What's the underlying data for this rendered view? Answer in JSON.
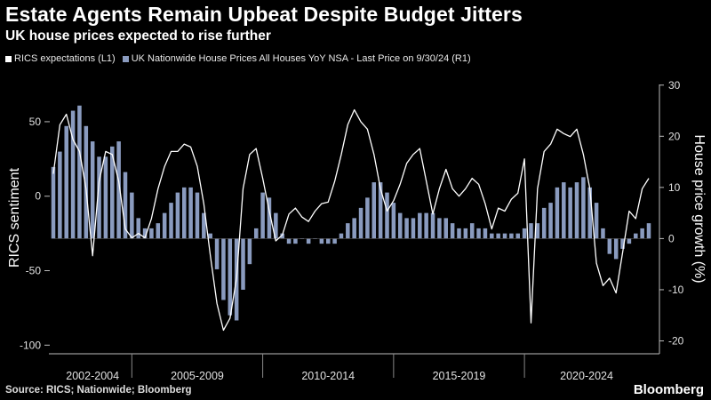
{
  "title": "Estate Agents Remain Upbeat Despite Budget Jitters",
  "subtitle": "UK house prices expected to rise further",
  "source": "Source: RICS; Nationwide; Bloomberg",
  "brand": "Bloomberg",
  "colors": {
    "background": "#000000",
    "line": "#ffffff",
    "bars": "#8a9bbf"
  },
  "chart_data": {
    "type": "bar+line",
    "legend": [
      {
        "label": "RICS expectations (L1)",
        "color": "#ffffff"
      },
      {
        "label": "UK Nationwide House Prices All Houses YoY NSA - Last Price on 9/30/24 (R1)",
        "color": "#8a9bbf"
      }
    ],
    "y_left": {
      "label": "RICS sentiment",
      "ticks": [
        "50",
        "0",
        "-50",
        "-100"
      ],
      "range": [
        -104,
        78
      ]
    },
    "y_right": {
      "label": "House price growth (%)",
      "ticks": [
        "30",
        "20",
        "10",
        "0",
        "-10",
        "-20"
      ],
      "range": [
        -22,
        31
      ]
    },
    "x_periods": [
      "2002-2004",
      "2005-2009",
      "2010-2014",
      "2015-2019",
      "2020-2024"
    ],
    "x_range": [
      2002.0,
      2024.75
    ],
    "series": [
      {
        "name": "RICS expectations (L1)",
        "axis": "left",
        "type": "line",
        "points": [
          [
            2002.0,
            15
          ],
          [
            2002.25,
            48
          ],
          [
            2002.5,
            55
          ],
          [
            2002.75,
            38
          ],
          [
            2003.0,
            30
          ],
          [
            2003.25,
            5
          ],
          [
            2003.5,
            -40
          ],
          [
            2003.75,
            10
          ],
          [
            2004.0,
            30
          ],
          [
            2004.25,
            28
          ],
          [
            2004.5,
            10
          ],
          [
            2004.75,
            -22
          ],
          [
            2005.0,
            -28
          ],
          [
            2005.25,
            -25
          ],
          [
            2005.5,
            -28
          ],
          [
            2005.75,
            -15
          ],
          [
            2006.0,
            5
          ],
          [
            2006.25,
            20
          ],
          [
            2006.5,
            30
          ],
          [
            2006.75,
            30
          ],
          [
            2007.0,
            35
          ],
          [
            2007.25,
            33
          ],
          [
            2007.5,
            20
          ],
          [
            2007.75,
            -5
          ],
          [
            2008.0,
            -40
          ],
          [
            2008.25,
            -72
          ],
          [
            2008.5,
            -90
          ],
          [
            2008.75,
            -82
          ],
          [
            2009.0,
            -55
          ],
          [
            2009.25,
            5
          ],
          [
            2009.5,
            28
          ],
          [
            2009.75,
            32
          ],
          [
            2010.0,
            12
          ],
          [
            2010.25,
            -10
          ],
          [
            2010.5,
            -30
          ],
          [
            2010.75,
            -26
          ],
          [
            2011.0,
            -12
          ],
          [
            2011.25,
            -8
          ],
          [
            2011.5,
            -14
          ],
          [
            2011.75,
            -17
          ],
          [
            2012.0,
            -10
          ],
          [
            2012.25,
            -5
          ],
          [
            2012.5,
            -4
          ],
          [
            2012.75,
            10
          ],
          [
            2013.0,
            28
          ],
          [
            2013.25,
            48
          ],
          [
            2013.5,
            58
          ],
          [
            2013.75,
            50
          ],
          [
            2014.0,
            45
          ],
          [
            2014.25,
            28
          ],
          [
            2014.5,
            5
          ],
          [
            2014.75,
            -10
          ],
          [
            2015.0,
            -3
          ],
          [
            2015.25,
            8
          ],
          [
            2015.5,
            22
          ],
          [
            2015.75,
            28
          ],
          [
            2016.0,
            32
          ],
          [
            2016.25,
            10
          ],
          [
            2016.5,
            -12
          ],
          [
            2016.75,
            5
          ],
          [
            2017.0,
            18
          ],
          [
            2017.25,
            5
          ],
          [
            2017.5,
            0
          ],
          [
            2017.75,
            5
          ],
          [
            2018.0,
            12
          ],
          [
            2018.25,
            8
          ],
          [
            2018.5,
            -5
          ],
          [
            2018.75,
            -22
          ],
          [
            2019.0,
            -8
          ],
          [
            2019.25,
            -10
          ],
          [
            2019.5,
            -2
          ],
          [
            2019.75,
            2
          ],
          [
            2020.0,
            25
          ],
          [
            2020.25,
            -85
          ],
          [
            2020.5,
            5
          ],
          [
            2020.75,
            30
          ],
          [
            2021.0,
            35
          ],
          [
            2021.25,
            45
          ],
          [
            2021.5,
            42
          ],
          [
            2021.75,
            40
          ],
          [
            2022.0,
            45
          ],
          [
            2022.25,
            28
          ],
          [
            2022.5,
            5
          ],
          [
            2022.75,
            -45
          ],
          [
            2023.0,
            -60
          ],
          [
            2023.25,
            -55
          ],
          [
            2023.5,
            -65
          ],
          [
            2023.75,
            -38
          ],
          [
            2024.0,
            -10
          ],
          [
            2024.25,
            -15
          ],
          [
            2024.5,
            5
          ],
          [
            2024.75,
            12
          ]
        ]
      },
      {
        "name": "UK Nationwide House Prices All Houses YoY NSA - Last Price on 9/30/24 (R1)",
        "axis": "right",
        "type": "bar",
        "points": [
          [
            2002.0,
            14
          ],
          [
            2002.25,
            17
          ],
          [
            2002.5,
            22
          ],
          [
            2002.75,
            25
          ],
          [
            2003.0,
            26
          ],
          [
            2003.25,
            22
          ],
          [
            2003.5,
            19
          ],
          [
            2003.75,
            16
          ],
          [
            2004.0,
            16
          ],
          [
            2004.25,
            18
          ],
          [
            2004.5,
            19
          ],
          [
            2004.75,
            13
          ],
          [
            2005.0,
            9
          ],
          [
            2005.25,
            4
          ],
          [
            2005.5,
            2
          ],
          [
            2005.75,
            2
          ],
          [
            2006.0,
            3
          ],
          [
            2006.25,
            5
          ],
          [
            2006.5,
            7
          ],
          [
            2006.75,
            9
          ],
          [
            2007.0,
            10
          ],
          [
            2007.25,
            10
          ],
          [
            2007.5,
            9
          ],
          [
            2007.75,
            5
          ],
          [
            2008.0,
            1
          ],
          [
            2008.25,
            -6
          ],
          [
            2008.5,
            -12
          ],
          [
            2008.75,
            -15
          ],
          [
            2009.0,
            -16
          ],
          [
            2009.25,
            -10
          ],
          [
            2009.5,
            -5
          ],
          [
            2009.75,
            2
          ],
          [
            2010.0,
            9
          ],
          [
            2010.25,
            8
          ],
          [
            2010.5,
            5
          ],
          [
            2010.75,
            1
          ],
          [
            2011.0,
            -1
          ],
          [
            2011.25,
            -1
          ],
          [
            2011.5,
            0
          ],
          [
            2011.75,
            -1
          ],
          [
            2012.0,
            0
          ],
          [
            2012.25,
            -1
          ],
          [
            2012.5,
            -1
          ],
          [
            2012.75,
            -1
          ],
          [
            2013.0,
            1
          ],
          [
            2013.25,
            3
          ],
          [
            2013.5,
            4
          ],
          [
            2013.75,
            6
          ],
          [
            2014.0,
            8
          ],
          [
            2014.25,
            11
          ],
          [
            2014.5,
            11
          ],
          [
            2014.75,
            9
          ],
          [
            2015.0,
            7
          ],
          [
            2015.25,
            5
          ],
          [
            2015.5,
            4
          ],
          [
            2015.75,
            4
          ],
          [
            2016.0,
            5
          ],
          [
            2016.25,
            5
          ],
          [
            2016.5,
            5
          ],
          [
            2016.75,
            4
          ],
          [
            2017.0,
            4
          ],
          [
            2017.25,
            3
          ],
          [
            2017.5,
            2
          ],
          [
            2017.75,
            2
          ],
          [
            2018.0,
            3
          ],
          [
            2018.25,
            2
          ],
          [
            2018.5,
            2
          ],
          [
            2018.75,
            1
          ],
          [
            2019.0,
            1
          ],
          [
            2019.25,
            1
          ],
          [
            2019.5,
            1
          ],
          [
            2019.75,
            1
          ],
          [
            2020.0,
            2
          ],
          [
            2020.25,
            3
          ],
          [
            2020.5,
            3
          ],
          [
            2020.75,
            6
          ],
          [
            2021.0,
            7
          ],
          [
            2021.25,
            10
          ],
          [
            2021.5,
            11
          ],
          [
            2021.75,
            10
          ],
          [
            2022.0,
            11
          ],
          [
            2022.25,
            12
          ],
          [
            2022.5,
            10
          ],
          [
            2022.75,
            7
          ],
          [
            2023.0,
            2
          ],
          [
            2023.25,
            -3
          ],
          [
            2023.5,
            -4
          ],
          [
            2023.75,
            -2
          ],
          [
            2024.0,
            -1
          ],
          [
            2024.25,
            1
          ],
          [
            2024.5,
            2
          ],
          [
            2024.75,
            3
          ]
        ]
      }
    ]
  }
}
